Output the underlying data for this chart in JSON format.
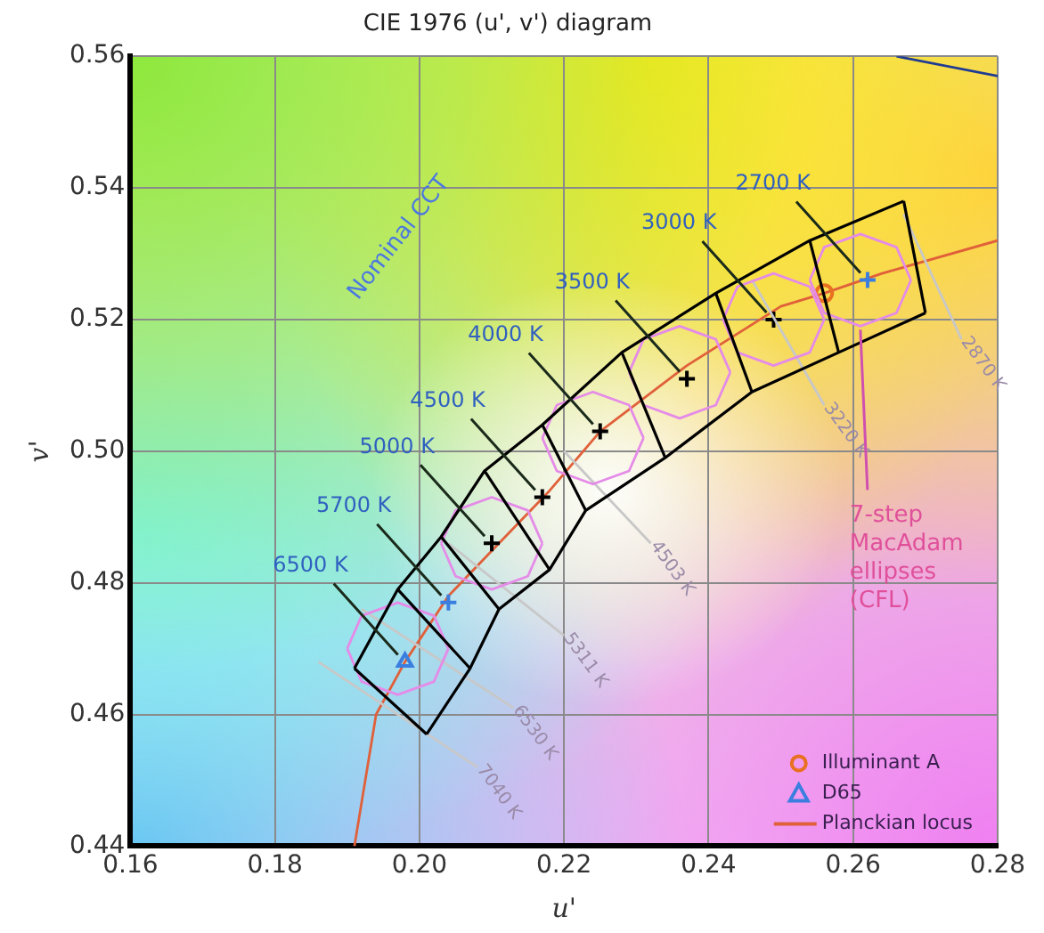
{
  "chart_data": {
    "type": "scatter",
    "title": "CIE 1976 (u', v') diagram",
    "xlabel": "u'",
    "ylabel": "v'",
    "xlim": [
      0.16,
      0.28
    ],
    "xticks": [
      0.16,
      0.18,
      {
        "value": 0.2,
        "label": "0.20"
      },
      0.22,
      0.24,
      0.26,
      0.28
    ],
    "ylim": [
      0.44,
      0.56
    ],
    "yticks": [
      0.44,
      0.46,
      0.48,
      {
        "value": 0.5,
        "label": "0.50"
      },
      0.52,
      0.54,
      0.56
    ],
    "grid": true,
    "legend": "bottom right",
    "series": [
      {
        "type": "line",
        "color": "#000000",
        "marker": "none",
        "x": [
          0.191,
          0.197,
          0.203,
          0.209,
          0.217,
          0.228,
          0.241,
          0.254,
          0.267
        ],
        "values": [
          0.467,
          0.479,
          0.487,
          0.497,
          0.504,
          0.515,
          0.524,
          0.532,
          0.538
        ]
      },
      {
        "type": "line",
        "color": "#000000",
        "marker": "none",
        "x": [
          0.201,
          0.207,
          0.211,
          0.218,
          0.223,
          0.234,
          0.246,
          0.258,
          0.27
        ],
        "values": [
          0.457,
          0.467,
          0.476,
          0.482,
          0.491,
          0.499,
          0.509,
          0.515,
          0.521
        ]
      },
      {
        "type": "line",
        "color": "#000000",
        "marker": "none",
        "x": [
          0.191,
          0.201
        ],
        "values": [
          0.467,
          0.457
        ]
      },
      {
        "type": "line",
        "color": "#000000",
        "marker": "none",
        "x": [
          0.197,
          0.207
        ],
        "values": [
          0.479,
          0.467
        ]
      },
      {
        "type": "line",
        "color": "#000000",
        "marker": "none",
        "x": [
          0.203,
          0.211
        ],
        "values": [
          0.487,
          0.476
        ]
      },
      {
        "type": "line",
        "color": "#000000",
        "marker": "none",
        "x": [
          0.209,
          0.218
        ],
        "values": [
          0.497,
          0.482
        ]
      },
      {
        "type": "line",
        "color": "#000000",
        "marker": "none",
        "x": [
          0.217,
          0.223
        ],
        "values": [
          0.504,
          0.491
        ]
      },
      {
        "type": "line",
        "color": "#000000",
        "marker": "none",
        "x": [
          0.228,
          0.234
        ],
        "values": [
          0.515,
          0.499
        ]
      },
      {
        "type": "line",
        "color": "#000000",
        "marker": "none",
        "x": [
          0.241,
          0.246
        ],
        "values": [
          0.524,
          0.509
        ]
      },
      {
        "type": "line",
        "color": "#000000",
        "marker": "none",
        "x": [
          0.254,
          0.258
        ],
        "values": [
          0.532,
          0.515
        ]
      },
      {
        "type": "line",
        "color": "#000000",
        "marker": "none",
        "x": [
          0.267,
          0.27
        ],
        "values": [
          0.538,
          0.521
        ]
      },
      {
        "type": "line",
        "color": "#e58be8",
        "marker": "none",
        "x": [
          0.19,
          0.192,
          0.197,
          0.202,
          0.204
        ],
        "values": [
          0.47,
          0.475,
          0.477,
          0.475,
          0.47
        ]
      },
      {
        "type": "line",
        "color": "#e58be8",
        "marker": "none",
        "x": [
          0.19,
          0.192,
          0.197,
          0.202,
          0.204
        ],
        "values": [
          0.47,
          0.465,
          0.463,
          0.465,
          0.47
        ]
      },
      {
        "type": "line",
        "color": "#e58be8",
        "marker": "none",
        "x": [
          0.203,
          0.205,
          0.21,
          0.215,
          0.217
        ],
        "values": [
          0.486,
          0.491,
          0.493,
          0.491,
          0.486
        ]
      },
      {
        "type": "line",
        "color": "#e58be8",
        "marker": "none",
        "x": [
          0.203,
          0.205,
          0.21,
          0.215,
          0.217
        ],
        "values": [
          0.486,
          0.481,
          0.479,
          0.481,
          0.486
        ]
      },
      {
        "type": "line",
        "color": "#e58be8",
        "marker": "none",
        "x": [
          0.217,
          0.219,
          0.224,
          0.229,
          0.231
        ],
        "values": [
          0.502,
          0.507,
          0.509,
          0.507,
          0.502
        ]
      },
      {
        "type": "line",
        "color": "#e58be8",
        "marker": "none",
        "x": [
          0.217,
          0.219,
          0.224,
          0.229,
          0.231
        ],
        "values": [
          0.502,
          0.497,
          0.495,
          0.497,
          0.502
        ]
      },
      {
        "type": "line",
        "color": "#e58be8",
        "marker": "none",
        "x": [
          0.229,
          0.231,
          0.236,
          0.241,
          0.243
        ],
        "values": [
          0.512,
          0.517,
          0.519,
          0.517,
          0.512
        ]
      },
      {
        "type": "line",
        "color": "#e58be8",
        "marker": "none",
        "x": [
          0.229,
          0.231,
          0.236,
          0.241,
          0.243
        ],
        "values": [
          0.512,
          0.507,
          0.505,
          0.507,
          0.512
        ]
      },
      {
        "type": "line",
        "color": "#e58be8",
        "marker": "none",
        "x": [
          0.242,
          0.244,
          0.249,
          0.254,
          0.256
        ],
        "values": [
          0.52,
          0.525,
          0.527,
          0.525,
          0.52
        ]
      },
      {
        "type": "line",
        "color": "#e58be8",
        "marker": "none",
        "x": [
          0.242,
          0.244,
          0.249,
          0.254,
          0.256
        ],
        "values": [
          0.52,
          0.515,
          0.513,
          0.515,
          0.52
        ]
      },
      {
        "type": "line",
        "color": "#e58be8",
        "marker": "none",
        "x": [
          0.254,
          0.256,
          0.261,
          0.266,
          0.268
        ],
        "values": [
          0.526,
          0.531,
          0.533,
          0.531,
          0.526
        ]
      },
      {
        "type": "line",
        "color": "#e58be8",
        "marker": "none",
        "x": [
          0.254,
          0.256,
          0.261,
          0.266,
          0.268
        ],
        "values": [
          0.526,
          0.521,
          0.519,
          0.521,
          0.526
        ]
      },
      {
        "type": "line",
        "color": "#c8c8c8",
        "marker": "none",
        "x": [
          0.186,
          0.208
        ],
        "values": [
          0.468,
          0.452
        ]
      },
      {
        "type": "line",
        "color": "#c8c8c8",
        "marker": "none",
        "x": [
          0.192,
          0.213
        ],
        "values": [
          0.476,
          0.461
        ]
      },
      {
        "type": "line",
        "color": "#c8c8c8",
        "marker": "none",
        "x": [
          0.204,
          0.22
        ],
        "values": [
          0.486,
          0.472
        ]
      },
      {
        "type": "line",
        "color": "#c8c8c8",
        "marker": "none",
        "x": [
          0.22,
          0.232
        ],
        "values": [
          0.5,
          0.486
        ]
      },
      {
        "type": "line",
        "color": "#c8c8c8",
        "marker": "none",
        "x": [
          0.246,
          0.256
        ],
        "values": [
          0.526,
          0.507
        ]
      },
      {
        "type": "line",
        "color": "#c8c8c8",
        "marker": "none",
        "x": [
          0.267,
          0.275
        ],
        "values": [
          0.536,
          0.517
        ]
      },
      {
        "type": "line",
        "color": "#1f3a93",
        "marker": "none",
        "x": [
          0.266,
          0.28
        ],
        "values": [
          0.56,
          0.557
        ]
      },
      {
        "color": "#000000",
        "marker": "cross",
        "x": [
          0.21,
          0.217,
          0.225,
          0.237,
          0.249
        ],
        "values": [
          0.486,
          0.493,
          0.503,
          0.511,
          0.52
        ]
      },
      {
        "color": "#3a7fe0",
        "marker": "cross",
        "x": [
          0.204,
          0.262
        ],
        "values": [
          0.477,
          0.526
        ]
      },
      {
        "name": "Illuminant A",
        "color": "#e87020",
        "marker": "circle",
        "x": [
          0.256
        ],
        "values": [
          0.524
        ]
      },
      {
        "name": "D65",
        "color": "#3a7fe0",
        "marker": "triangle",
        "x": [
          0.198
        ],
        "values": [
          0.468
        ]
      },
      {
        "name": "Planckian locus",
        "type": "line",
        "color": "#e0603a",
        "marker": "none",
        "x": [
          0.191,
          0.194,
          0.198,
          0.204,
          0.211,
          0.218,
          0.225,
          0.237,
          0.25,
          0.256,
          0.264,
          0.28
        ],
        "values": [
          0.44,
          0.46,
          0.468,
          0.478,
          0.486,
          0.494,
          0.503,
          0.513,
          0.522,
          0.524,
          0.527,
          0.532
        ]
      }
    ],
    "annotations": [
      {
        "text": "6500 K",
        "x": 0.198,
        "y": 0.468
      },
      {
        "text": "5700 K",
        "x": 0.204,
        "y": 0.477
      },
      {
        "text": "5000 K",
        "x": 0.21,
        "y": 0.486
      },
      {
        "text": "4500 K",
        "x": 0.217,
        "y": 0.493
      },
      {
        "text": "4000 K",
        "x": 0.225,
        "y": 0.503
      },
      {
        "text": "3500 K",
        "x": 0.237,
        "y": 0.511
      },
      {
        "text": "3000 K",
        "x": 0.249,
        "y": 0.52
      },
      {
        "text": "2700 K",
        "x": 0.262,
        "y": 0.526
      },
      "7040 K",
      "6530 K",
      "5311 K",
      "4503 K",
      "3220 K",
      "2870 K",
      "Nominal CCT",
      {
        "text": "7-step MacAdam ellipses (CFL)",
        "x": 0.261,
        "y": 0.519
      }
    ]
  }
}
